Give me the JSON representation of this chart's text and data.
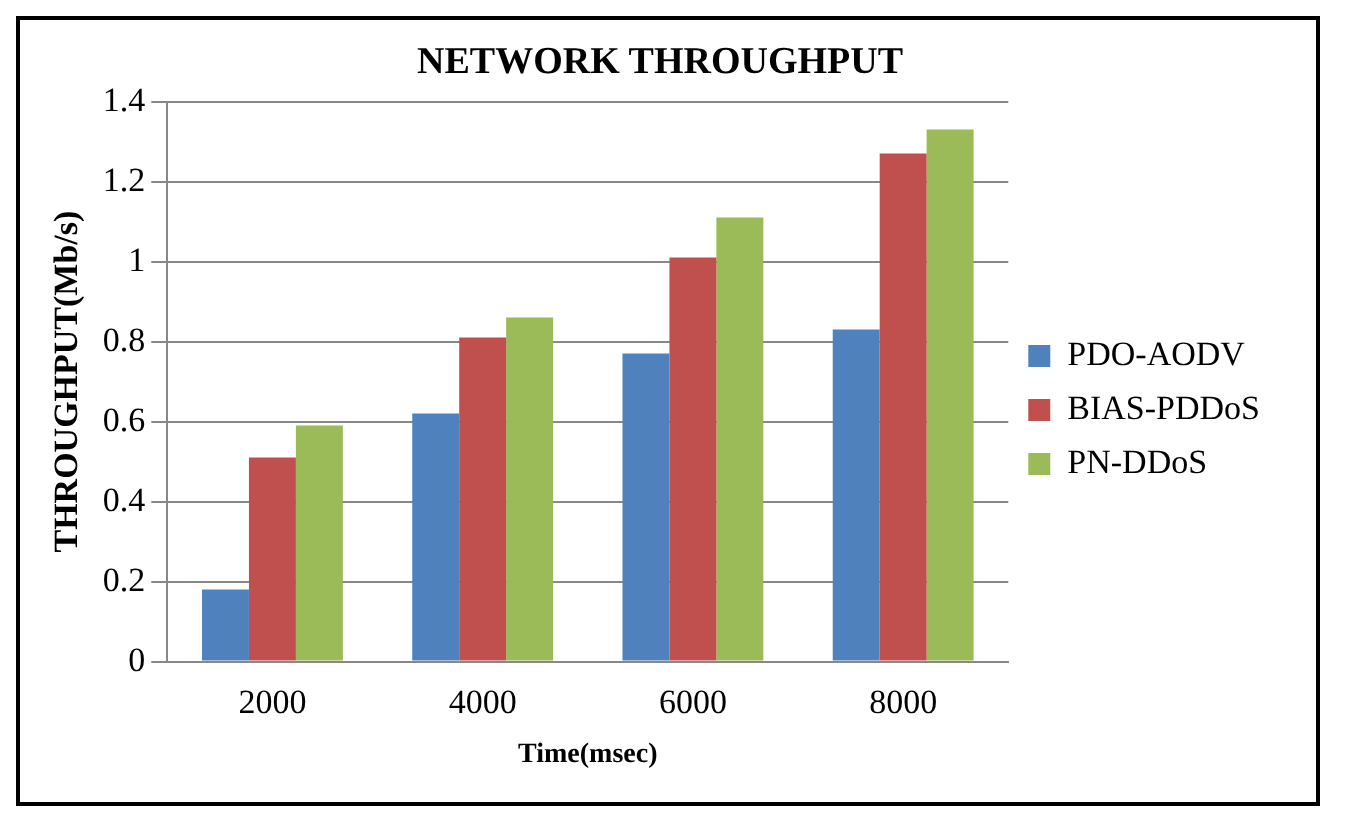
{
  "chart_data": {
    "type": "bar",
    "title": "NETWORK THROUGHPUT",
    "xlabel": "Time(msec)",
    "ylabel": "THROUGHPUT(Mb/s)",
    "categories": [
      "2000",
      "4000",
      "6000",
      "8000"
    ],
    "series": [
      {
        "name": "PDO-AODV",
        "color": "#4f81bd",
        "values": [
          0.18,
          0.62,
          0.77,
          0.83
        ]
      },
      {
        "name": "BIAS-PDDoS",
        "color": "#c0504d",
        "values": [
          0.51,
          0.81,
          1.01,
          1.27
        ]
      },
      {
        "name": "PN-DDoS",
        "color": "#9bbb59",
        "values": [
          0.59,
          0.86,
          1.11,
          1.33
        ]
      }
    ],
    "ylim": [
      0,
      1.4
    ],
    "yticks": [
      0,
      0.2,
      0.4,
      0.6,
      0.8,
      1,
      1.2,
      1.4
    ],
    "grid": "y",
    "legend": "right"
  }
}
